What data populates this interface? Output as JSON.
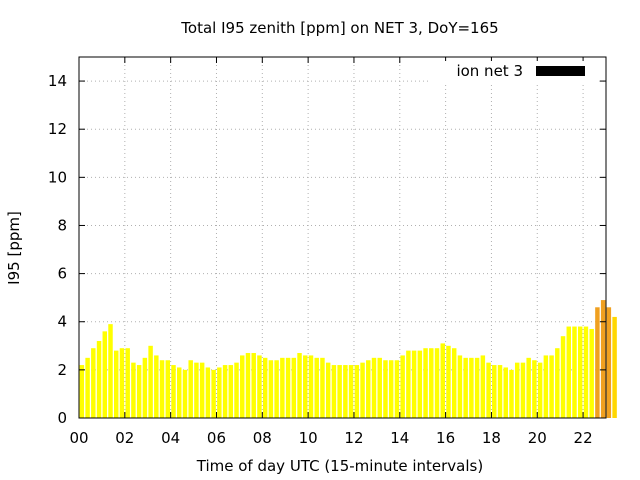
{
  "chart_data": {
    "type": "bar",
    "title": "Total I95 zenith [ppm] on NET 3, DoY=165",
    "xlabel": "Time of day UTC (15-minute intervals)",
    "ylabel": "I95 [ppm]",
    "xlim": [
      0,
      23
    ],
    "ylim": [
      0,
      15
    ],
    "x_ticks": [
      "00",
      "02",
      "04",
      "06",
      "08",
      "10",
      "12",
      "14",
      "16",
      "18",
      "20",
      "22"
    ],
    "y_ticks": [
      "0",
      "2",
      "4",
      "6",
      "8",
      "10",
      "12",
      "14"
    ],
    "grid": true,
    "legend_position": "top-right",
    "colors": {
      "low": "#ffff00",
      "mid": "#ffd700",
      "high": "#f0a020",
      "legend": "#000000",
      "grid": "#b0b0b0"
    },
    "series": [
      {
        "name": "ion net 3",
        "interval_hours": 0.25,
        "values": [
          2.2,
          2.5,
          2.9,
          3.2,
          3.6,
          3.9,
          2.8,
          2.9,
          2.9,
          2.3,
          2.2,
          2.5,
          3.0,
          2.6,
          2.4,
          2.4,
          2.2,
          2.1,
          2.0,
          2.4,
          2.3,
          2.3,
          2.1,
          2.0,
          2.1,
          2.2,
          2.2,
          2.3,
          2.6,
          2.7,
          2.7,
          2.6,
          2.5,
          2.4,
          2.4,
          2.5,
          2.5,
          2.5,
          2.7,
          2.6,
          2.6,
          2.5,
          2.5,
          2.3,
          2.2,
          2.2,
          2.2,
          2.2,
          2.2,
          2.3,
          2.4,
          2.5,
          2.5,
          2.4,
          2.4,
          2.4,
          2.6,
          2.8,
          2.8,
          2.8,
          2.9,
          2.9,
          2.9,
          3.1,
          3.0,
          2.9,
          2.6,
          2.5,
          2.5,
          2.5,
          2.6,
          2.3,
          2.2,
          2.2,
          2.1,
          2.0,
          2.3,
          2.3,
          2.5,
          2.4,
          2.3,
          2.6,
          2.6,
          2.9,
          3.4,
          3.8,
          3.8,
          3.8,
          3.8,
          3.7,
          4.6,
          4.9,
          4.6,
          4.2
        ]
      }
    ]
  }
}
